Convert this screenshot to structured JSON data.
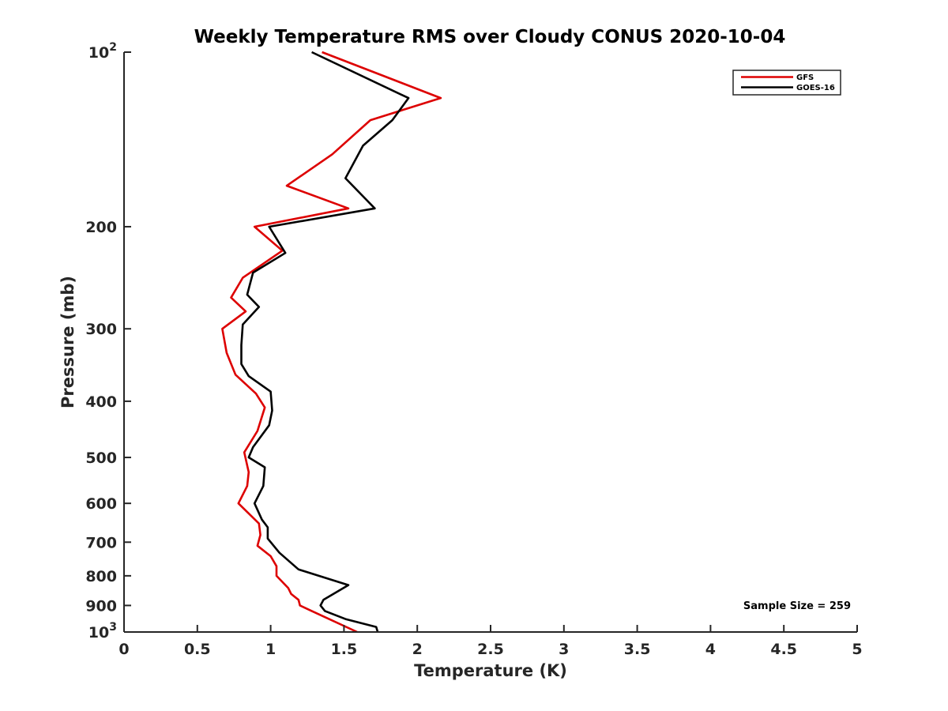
{
  "chart_data": {
    "type": "line",
    "title": "Weekly Temperature RMS over Cloudy CONUS 2020-10-04",
    "xlabel": "Temperature (K)",
    "ylabel": "Pressure (mb)",
    "xlim": [
      0,
      5
    ],
    "ylim": [
      100,
      1000
    ],
    "y_scale": "log",
    "y_direction": "reversed",
    "grid": false,
    "legend_position": "top-right",
    "x_ticks": [
      {
        "value": 0,
        "label": "0"
      },
      {
        "value": 0.5,
        "label": "0.5"
      },
      {
        "value": 1,
        "label": "1"
      },
      {
        "value": 1.5,
        "label": "1.5"
      },
      {
        "value": 2,
        "label": "2"
      },
      {
        "value": 2.5,
        "label": "2.5"
      },
      {
        "value": 3,
        "label": "3"
      },
      {
        "value": 3.5,
        "label": "3.5"
      },
      {
        "value": 4,
        "label": "4"
      },
      {
        "value": 4.5,
        "label": "4.5"
      },
      {
        "value": 5,
        "label": "5"
      }
    ],
    "y_ticks": [
      {
        "value": 100,
        "base": "10",
        "exp": "2"
      },
      {
        "value": 200,
        "label": "200"
      },
      {
        "value": 300,
        "label": "300"
      },
      {
        "value": 400,
        "label": "400"
      },
      {
        "value": 500,
        "label": "500"
      },
      {
        "value": 600,
        "label": "600"
      },
      {
        "value": 700,
        "label": "700"
      },
      {
        "value": 800,
        "label": "800"
      },
      {
        "value": 900,
        "label": "900"
      },
      {
        "value": 1000,
        "base": "10",
        "exp": "3"
      }
    ],
    "annotation": "Sample Size = 259",
    "series": [
      {
        "name": "GFS",
        "color": "#dd0000",
        "x": [
          1.35,
          2.16,
          1.68,
          1.42,
          1.11,
          1.53,
          0.89,
          1.08,
          0.81,
          0.73,
          0.83,
          0.67,
          0.7,
          0.76,
          0.9,
          0.96,
          0.91,
          0.82,
          0.85,
          0.84,
          0.78,
          0.92,
          0.93,
          0.91,
          1.0,
          1.04,
          1.04,
          1.12,
          1.14,
          1.19,
          1.2,
          1.28,
          1.59
        ],
        "y": [
          100,
          120,
          131,
          150,
          170,
          186,
          200,
          220,
          245,
          265,
          280,
          300,
          330,
          360,
          388,
          410,
          450,
          490,
          530,
          560,
          600,
          650,
          680,
          710,
          740,
          770,
          800,
          840,
          860,
          880,
          900,
          920,
          1000
        ]
      },
      {
        "name": "GOES-16",
        "color": "#000000",
        "x": [
          1.28,
          1.94,
          1.83,
          1.63,
          1.51,
          1.71,
          0.99,
          1.1,
          0.88,
          0.84,
          0.92,
          0.81,
          0.8,
          0.8,
          0.85,
          1.0,
          1.01,
          0.99,
          0.88,
          0.85,
          0.96,
          0.95,
          0.89,
          0.94,
          0.98,
          0.98,
          1.06,
          1.19,
          1.53,
          1.36,
          1.34,
          1.37,
          1.51,
          1.72,
          1.73
        ],
        "y": [
          100,
          120,
          131,
          145,
          165,
          186,
          200,
          222,
          240,
          262,
          275,
          295,
          320,
          345,
          362,
          385,
          415,
          440,
          480,
          500,
          520,
          560,
          600,
          640,
          660,
          690,
          730,
          780,
          830,
          880,
          900,
          920,
          950,
          980,
          1000
        ]
      }
    ]
  }
}
